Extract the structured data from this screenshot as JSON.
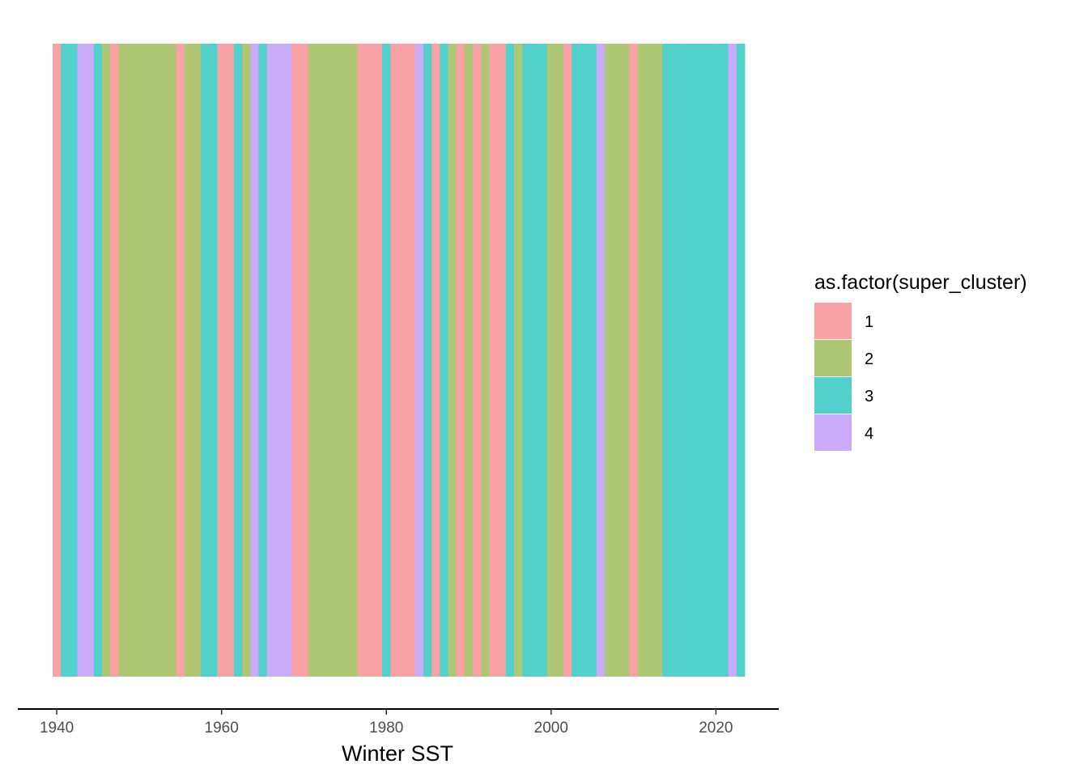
{
  "chart_data": {
    "type": "heatmap",
    "title": "",
    "xlabel": "Winter SST",
    "ylabel": "",
    "xlim": [
      1939.5,
      2023.5
    ],
    "x_ticks": [
      1940,
      1960,
      1980,
      2000,
      2020
    ],
    "x_tick_labels": [
      "1940",
      "1960",
      "1980",
      "2000",
      "2020"
    ],
    "grid": false,
    "legend": {
      "title": "as.factor(super_cluster)",
      "position": "right",
      "entries": [
        {
          "label": "1",
          "color": "#F8A2A5"
        },
        {
          "label": "2",
          "color": "#AFC674"
        },
        {
          "label": "3",
          "color": "#51D0CC"
        },
        {
          "label": "4",
          "color": "#C9ABF9"
        }
      ]
    },
    "years": [
      1940,
      1941,
      1942,
      1943,
      1944,
      1945,
      1946,
      1947,
      1948,
      1949,
      1950,
      1951,
      1952,
      1953,
      1954,
      1955,
      1956,
      1957,
      1958,
      1959,
      1960,
      1961,
      1962,
      1963,
      1964,
      1965,
      1966,
      1967,
      1968,
      1969,
      1970,
      1971,
      1972,
      1973,
      1974,
      1975,
      1976,
      1977,
      1978,
      1979,
      1980,
      1981,
      1982,
      1983,
      1984,
      1985,
      1986,
      1987,
      1988,
      1989,
      1990,
      1991,
      1992,
      1993,
      1994,
      1995,
      1996,
      1997,
      1998,
      1999,
      2000,
      2001,
      2002,
      2003,
      2004,
      2005,
      2006,
      2007,
      2008,
      2009,
      2010,
      2011,
      2012,
      2013,
      2014,
      2015,
      2016,
      2017,
      2018,
      2019,
      2020,
      2021,
      2022,
      2023
    ],
    "super_cluster": [
      1,
      3,
      3,
      4,
      4,
      3,
      2,
      1,
      2,
      2,
      2,
      2,
      2,
      2,
      2,
      1,
      2,
      2,
      3,
      3,
      1,
      1,
      3,
      2,
      4,
      3,
      4,
      4,
      4,
      1,
      1,
      2,
      2,
      2,
      2,
      2,
      2,
      1,
      1,
      1,
      3,
      1,
      1,
      1,
      4,
      3,
      1,
      3,
      2,
      1,
      2,
      1,
      2,
      1,
      1,
      3,
      2,
      3,
      3,
      3,
      2,
      2,
      1,
      3,
      3,
      3,
      4,
      2,
      2,
      2,
      1,
      2,
      2,
      2,
      3,
      3,
      3,
      3,
      3,
      3,
      3,
      3,
      4,
      3
    ]
  }
}
